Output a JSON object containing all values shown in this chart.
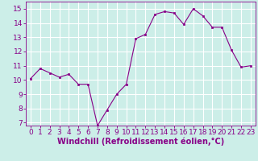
{
  "x": [
    0,
    1,
    2,
    3,
    4,
    5,
    6,
    7,
    8,
    9,
    10,
    11,
    12,
    13,
    14,
    15,
    16,
    17,
    18,
    19,
    20,
    21,
    22,
    23
  ],
  "y": [
    10.1,
    10.8,
    10.5,
    10.2,
    10.4,
    9.7,
    9.7,
    6.8,
    7.9,
    9.0,
    9.7,
    12.9,
    13.2,
    14.6,
    14.8,
    14.7,
    13.9,
    15.0,
    14.5,
    13.7,
    13.7,
    12.1,
    10.9,
    11.0
  ],
  "line_color": "#880088",
  "marker_color": "#880088",
  "bg_color": "#cceee8",
  "grid_color": "#ffffff",
  "xlabel": "Windchill (Refroidissement éolien,°C)",
  "xlim": [
    -0.5,
    23.5
  ],
  "ylim": [
    6.8,
    15.5
  ],
  "yticks": [
    7,
    8,
    9,
    10,
    11,
    12,
    13,
    14,
    15
  ],
  "xticks": [
    0,
    1,
    2,
    3,
    4,
    5,
    6,
    7,
    8,
    9,
    10,
    11,
    12,
    13,
    14,
    15,
    16,
    17,
    18,
    19,
    20,
    21,
    22,
    23
  ],
  "tick_fontsize": 6.5,
  "xlabel_fontsize": 7
}
